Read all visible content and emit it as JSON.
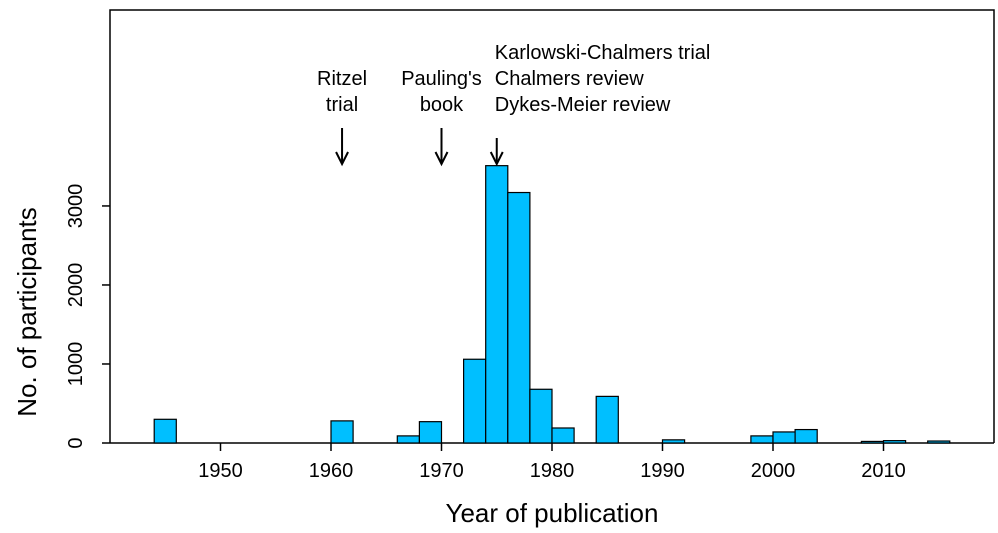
{
  "chart_data": {
    "type": "histogram",
    "xlabel": "Year of publication",
    "ylabel": "No. of participants",
    "bins": [
      1944,
      1946,
      1948,
      1950,
      1952,
      1954,
      1956,
      1958,
      1960,
      1962,
      1964,
      1966,
      1968,
      1970,
      1972,
      1974,
      1976,
      1978,
      1980,
      1982,
      1984,
      1986,
      1988,
      1990,
      1992,
      1994,
      1996,
      1998,
      2000,
      2002,
      2004,
      2006,
      2008,
      2010,
      2012,
      2014,
      2016
    ],
    "values": [
      300,
      0,
      0,
      0,
      0,
      0,
      0,
      0,
      280,
      0,
      0,
      90,
      270,
      0,
      1060,
      3510,
      3170,
      680,
      190,
      0,
      590,
      0,
      0,
      40,
      0,
      0,
      0,
      90,
      140,
      170,
      0,
      0,
      20,
      30,
      0,
      25
    ],
    "color": "#00bfff",
    "xlim": [
      1940,
      2020
    ],
    "xticks": [
      1950,
      1960,
      1970,
      1980,
      1990,
      2000,
      2010
    ],
    "ylim": [
      0,
      5480
    ],
    "yticks": [
      0,
      1000,
      2000,
      3000
    ],
    "annotations": [
      {
        "x": 1961,
        "lines": [
          "Ritzel",
          "trial"
        ]
      },
      {
        "x": 1970,
        "lines": [
          "Pauling's",
          "book"
        ]
      },
      {
        "x": 1975,
        "lines": [
          "Karlowski-Chalmers trial",
          "Chalmers review",
          "Dykes-Meier review"
        ]
      }
    ]
  }
}
